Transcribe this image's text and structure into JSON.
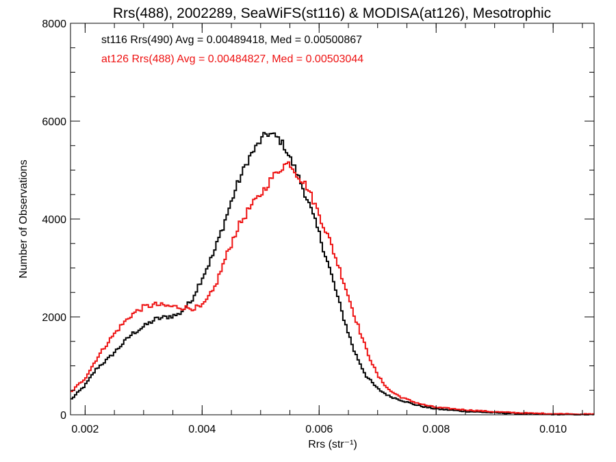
{
  "chart_data": {
    "type": "line",
    "title": "Rrs(488), 2002289, SeaWiFS(st116) & MODISA(at126), Mesotrophic",
    "xlabel": "Rrs (str⁻¹)",
    "ylabel": "Number of Observations",
    "xlim": [
      0.00175,
      0.0107
    ],
    "ylim": [
      0,
      8000
    ],
    "xticks": [
      0.002,
      0.004,
      0.006,
      0.008,
      0.01
    ],
    "xtick_labels": [
      "0.002",
      "0.004",
      "0.006",
      "0.008",
      "0.010"
    ],
    "yticks": [
      0,
      2000,
      4000,
      6000,
      8000
    ],
    "ytick_labels": [
      "0",
      "2000",
      "4000",
      "6000",
      "8000"
    ],
    "step": true,
    "grid": false,
    "series": [
      {
        "name": "st116 Rrs(490)",
        "legend_text": "st116 Rrs(490) Avg = 0.00489418, Med = 0.00500867",
        "color": "#000000",
        "x": [
          0.00175,
          0.002,
          0.0022,
          0.0024,
          0.0026,
          0.0028,
          0.003,
          0.0032,
          0.0034,
          0.0036,
          0.0038,
          0.004,
          0.0042,
          0.0044,
          0.0046,
          0.0048,
          0.005,
          0.0051,
          0.0052,
          0.0053,
          0.0054,
          0.0055,
          0.0056,
          0.0058,
          0.006,
          0.0062,
          0.0064,
          0.0066,
          0.0068,
          0.007,
          0.0072,
          0.0074,
          0.0076,
          0.0078,
          0.008,
          0.0085,
          0.009,
          0.0095,
          0.01,
          0.0107
        ],
        "y": [
          300,
          600,
          950,
          1150,
          1400,
          1650,
          1800,
          1950,
          2000,
          2050,
          2300,
          2800,
          3300,
          4000,
          4700,
          5250,
          5600,
          5750,
          5720,
          5650,
          5500,
          5250,
          5000,
          4400,
          3700,
          2900,
          2050,
          1300,
          800,
          530,
          380,
          300,
          220,
          160,
          120,
          70,
          40,
          20,
          10,
          0
        ]
      },
      {
        "name": "at126 Rrs(488)",
        "legend_text": "at126 Rrs(488) Avg = 0.00484827, Med = 0.00503044",
        "color": "#ee1111",
        "x": [
          0.00175,
          0.002,
          0.0022,
          0.0024,
          0.0026,
          0.0028,
          0.003,
          0.0032,
          0.0034,
          0.0036,
          0.0038,
          0.004,
          0.0042,
          0.0044,
          0.0046,
          0.0048,
          0.005,
          0.0052,
          0.0054,
          0.0055,
          0.0056,
          0.0058,
          0.006,
          0.0062,
          0.0064,
          0.0066,
          0.0068,
          0.007,
          0.0072,
          0.0074,
          0.0076,
          0.0078,
          0.008,
          0.0085,
          0.009,
          0.0095,
          0.01,
          0.0107
        ],
        "y": [
          450,
          750,
          1150,
          1500,
          1800,
          2050,
          2200,
          2250,
          2220,
          2200,
          2180,
          2200,
          2550,
          3200,
          3800,
          4200,
          4500,
          4850,
          5100,
          5150,
          4950,
          4650,
          4100,
          3500,
          2800,
          2050,
          1350,
          800,
          500,
          360,
          270,
          200,
          150,
          100,
          60,
          35,
          20,
          10
        ]
      }
    ]
  }
}
